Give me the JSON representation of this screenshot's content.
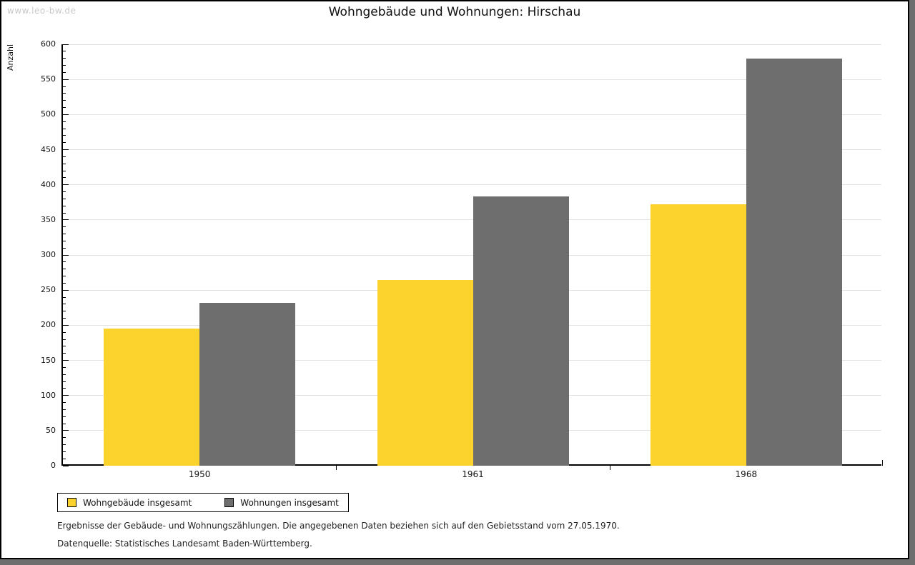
{
  "watermark": "www.leo-bw.de",
  "title": "Wohngebäude und Wohnungen: Hirschau",
  "chart_data": {
    "type": "bar",
    "title": "Wohngebäude und Wohnungen: Hirschau",
    "categories": [
      "1950",
      "1961",
      "1968"
    ],
    "series": [
      {
        "name": "Wohngebäude insgesamt",
        "color": "#FCD32D",
        "values": [
          195,
          264,
          372
        ]
      },
      {
        "name": "Wohnungen insgesamt",
        "color": "#6E6E6E",
        "values": [
          232,
          383,
          580
        ]
      }
    ],
    "ylabel": "Anzahl",
    "xlabel": "",
    "ylim": [
      0,
      600
    ],
    "ytick_step": 50,
    "yminor_step": 10,
    "grid": true,
    "legend_position": "bottom-left"
  },
  "footer": {
    "line1": "Ergebnisse der Gebäude- und Wohnungszählungen. Die angegebenen Daten beziehen sich auf den Gebietsstand vom 27.05.1970.",
    "line2": "Datenquelle: Statistisches Landesamt Baden-Württemberg."
  }
}
